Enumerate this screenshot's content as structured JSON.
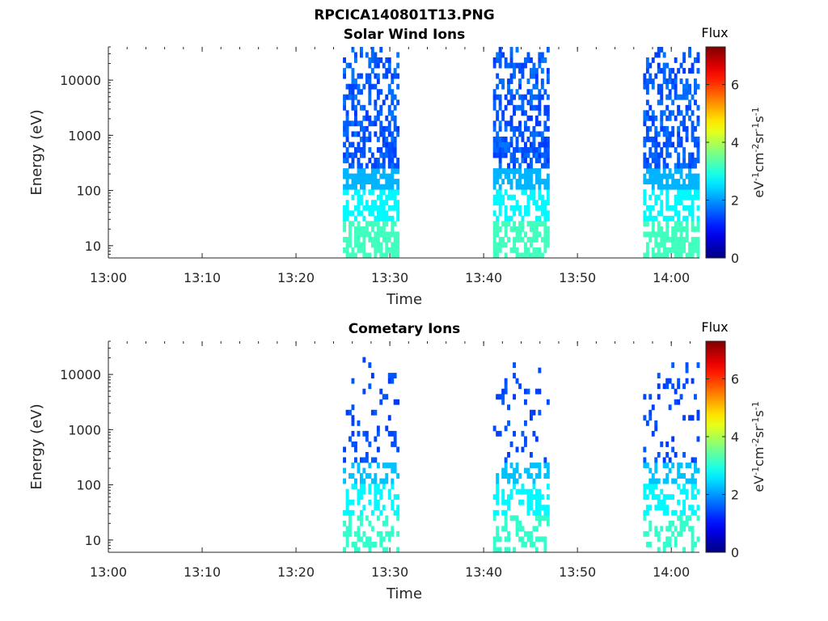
{
  "figure": {
    "title": "RPCICA140801T13.PNG"
  },
  "chart_data": [
    {
      "type": "heatmap",
      "title": "Solar Wind Ions",
      "xlabel": "Time",
      "ylabel": "Energy (eV)",
      "x_ticks": [
        "13:00",
        "13:10",
        "13:20",
        "13:30",
        "13:40",
        "13:50",
        "14:00"
      ],
      "y_ticks": [
        "10",
        "100",
        "1000",
        "10000"
      ],
      "y_scale": "log",
      "xlim": [
        "13:00",
        "14:03"
      ],
      "ylim": [
        6,
        40000
      ],
      "colorbar": {
        "title": "Flux",
        "label": "eV-1cm-2sr-1s-1",
        "ticks": [
          "0",
          "2",
          "4",
          "6"
        ],
        "range": [
          0,
          7.3
        ],
        "colormap": "jet"
      },
      "bursts": [
        {
          "start": "13:25",
          "end": "13:31",
          "max_energy_eV": 40000
        },
        {
          "start": "13:41",
          "end": "13:47",
          "max_energy_eV": 40000
        },
        {
          "start": "13:57",
          "end": "14:03",
          "max_energy_eV": 40000
        }
      ]
    },
    {
      "type": "heatmap",
      "title": "Cometary Ions",
      "xlabel": "Time",
      "ylabel": "Energy (eV)",
      "x_ticks": [
        "13:00",
        "13:10",
        "13:20",
        "13:30",
        "13:40",
        "13:50",
        "14:00"
      ],
      "y_ticks": [
        "10",
        "100",
        "1000",
        "10000"
      ],
      "y_scale": "log",
      "xlim": [
        "13:00",
        "14:03"
      ],
      "ylim": [
        6,
        40000
      ],
      "colorbar": {
        "title": "Flux",
        "label": "eV-1cm-2sr-1s-1",
        "ticks": [
          "0",
          "2",
          "4",
          "6"
        ],
        "range": [
          0,
          7.3
        ],
        "colormap": "jet"
      },
      "bursts": [
        {
          "start": "13:25",
          "end": "13:31",
          "max_energy_eV": 30000
        },
        {
          "start": "13:41",
          "end": "13:47",
          "max_energy_eV": 15000
        },
        {
          "start": "13:57",
          "end": "14:03",
          "max_energy_eV": 18000
        }
      ]
    }
  ]
}
